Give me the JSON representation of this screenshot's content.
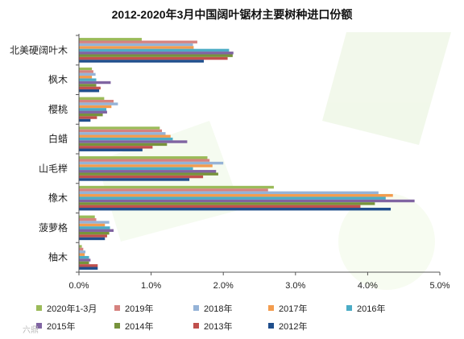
{
  "watermark": "六鼎",
  "chart_data": {
    "type": "bar",
    "orientation": "horizontal",
    "title": "2012-2020年3月中国阔叶锯材主要树种进口份额",
    "categories": [
      "北美硬阔叶木",
      "枫木",
      "樱桃",
      "白蜡",
      "山毛榉",
      "橡木",
      "菠萝格",
      "柚木"
    ],
    "xlim": [
      0,
      0.05
    ],
    "xticks": [
      "0.0%",
      "1.0%",
      "2.0%",
      "3.0%",
      "4.0%",
      "5.0%"
    ],
    "xtick_values": [
      0,
      0.01,
      0.02,
      0.03,
      0.04,
      0.05
    ],
    "grid": false,
    "legend_position": "bottom",
    "series": [
      {
        "name": "2020年1-3月",
        "color": "#9bbb59",
        "values": [
          0.0087,
          0.0018,
          0.0035,
          0.0112,
          0.0178,
          0.027,
          0.0022,
          0.0004
        ]
      },
      {
        "name": "2019年",
        "color": "#d6827f",
        "values": [
          0.0164,
          0.002,
          0.0048,
          0.0115,
          0.0181,
          0.0262,
          0.0024,
          0.0006
        ]
      },
      {
        "name": "2018年",
        "color": "#95b3d7",
        "values": [
          0.0158,
          0.0023,
          0.0054,
          0.012,
          0.02,
          0.0415,
          0.0042,
          0.0009
        ]
      },
      {
        "name": "2017年",
        "color": "#f39c4e",
        "values": [
          0.0159,
          0.0018,
          0.0045,
          0.0127,
          0.0185,
          0.0435,
          0.0036,
          0.0008
        ]
      },
      {
        "name": "2016年",
        "color": "#4bacc6",
        "values": [
          0.0208,
          0.0024,
          0.0038,
          0.013,
          0.0158,
          0.0425,
          0.0043,
          0.0014
        ]
      },
      {
        "name": "2015年",
        "color": "#8064a2",
        "values": [
          0.0214,
          0.0044,
          0.0039,
          0.015,
          0.019,
          0.0465,
          0.0048,
          0.0016
        ]
      },
      {
        "name": "2014年",
        "color": "#77933c",
        "values": [
          0.0213,
          0.0024,
          0.0033,
          0.0122,
          0.0193,
          0.041,
          0.0042,
          0.0014
        ]
      },
      {
        "name": "2013年",
        "color": "#c0504d",
        "values": [
          0.0206,
          0.003,
          0.0025,
          0.0102,
          0.0172,
          0.039,
          0.0039,
          0.0026
        ]
      },
      {
        "name": "2012年",
        "color": "#1f4e8c",
        "values": [
          0.0173,
          0.0028,
          0.0016,
          0.0088,
          0.0153,
          0.0432,
          0.0036,
          0.0026
        ]
      }
    ]
  }
}
